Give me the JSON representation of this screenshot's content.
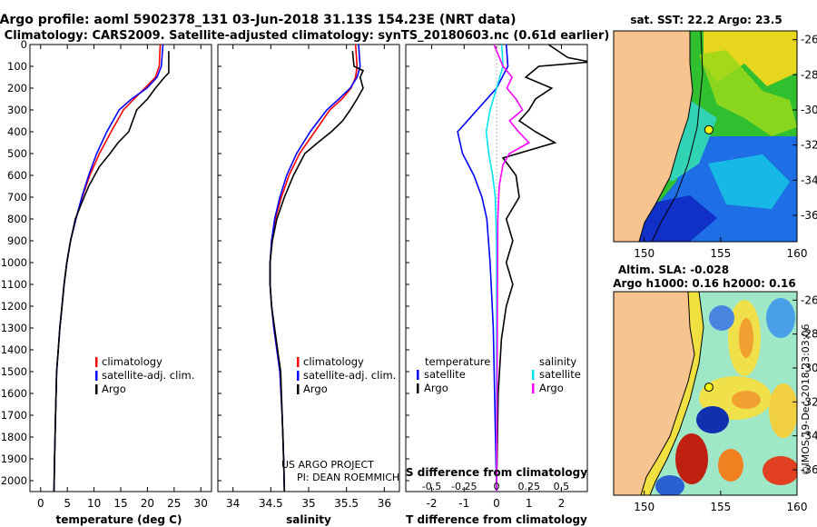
{
  "title_line1": "Argo profile: aoml 5902378_131 03-Jun-2018 31.13S 154.23E (NRT data)",
  "title_line2": "Climatology: CARS2009. Satellite-adjusted climatology: synTS_20180603.nc (0.61d earlier)",
  "credit_line1": "US ARGO PROJECT",
  "credit_line2": "PI: DEAN ROEMMICH",
  "stamp": "©IMOS 19-Dec-2018 23:03:06",
  "colors": {
    "climatology": "#ff0000",
    "satellite": "#0000ff",
    "argo": "#000000",
    "sat_s_diff": "#00e5ee",
    "argo_s_diff": "#ff00ff",
    "land": "#f7c38f"
  },
  "chart_data": [
    {
      "type": "line",
      "id": "temperature",
      "xlabel": "temperature (deg C)",
      "ylabel": "",
      "xlim": [
        -2,
        32
      ],
      "ylim": [
        2050,
        0
      ],
      "xticks": [
        "0",
        "5",
        "10",
        "15",
        "20",
        "25",
        "30"
      ],
      "xtick_values": [
        0,
        5,
        10,
        15,
        20,
        25,
        30
      ],
      "yticks": [
        "0",
        "100",
        "200",
        "300",
        "400",
        "500",
        "600",
        "700",
        "800",
        "900",
        "1000",
        "1100",
        "1200",
        "1300",
        "1400",
        "1500",
        "1600",
        "1700",
        "1800",
        "1900",
        "2000"
      ],
      "ytick_values": [
        0,
        100,
        200,
        300,
        400,
        500,
        600,
        700,
        800,
        900,
        1000,
        1100,
        1200,
        1300,
        1400,
        1500,
        1600,
        1700,
        1800,
        1900,
        2000
      ],
      "legend": [
        "climatology",
        "satellite-adj. clim.",
        "Argo"
      ],
      "series": [
        {
          "name": "climatology",
          "color": "#ff0000",
          "x": [
            22.4,
            22.2,
            21.5,
            19.5,
            17.5,
            15.5,
            13.2,
            11.0,
            9.2,
            7.8,
            6.6,
            5.6,
            4.9,
            4.4,
            4.0,
            3.6,
            3.3,
            3.0,
            2.8,
            2.6,
            2.5
          ],
          "y": [
            0,
            100,
            150,
            200,
            250,
            300,
            400,
            500,
            600,
            700,
            800,
            900,
            1000,
            1100,
            1200,
            1300,
            1400,
            1500,
            1700,
            1900,
            2050
          ]
        },
        {
          "name": "satellite-adj. clim.",
          "color": "#0000ff",
          "x": [
            22.9,
            22.6,
            21.8,
            19.9,
            17.0,
            14.7,
            12.4,
            10.5,
            9.0,
            7.7,
            6.6,
            5.6,
            4.9,
            4.4,
            4.0,
            3.6,
            3.3,
            3.0,
            2.8,
            2.6,
            2.5
          ],
          "y": [
            0,
            100,
            150,
            200,
            250,
            300,
            400,
            500,
            600,
            700,
            800,
            900,
            1000,
            1100,
            1200,
            1300,
            1400,
            1500,
            1700,
            1900,
            2050
          ]
        },
        {
          "name": "Argo",
          "color": "#000000",
          "x": [
            24.0,
            24.0,
            23.2,
            21.5,
            20.0,
            18.0,
            16.5,
            14.5,
            13.0,
            11.0,
            9.0,
            7.8,
            6.5,
            5.6,
            4.9,
            4.4,
            4.0,
            3.6,
            3.3,
            3.0,
            2.8,
            2.6,
            2.5
          ],
          "y": [
            30,
            130,
            150,
            200,
            250,
            300,
            400,
            450,
            500,
            560,
            650,
            720,
            800,
            900,
            1000,
            1100,
            1200,
            1300,
            1400,
            1500,
            1700,
            1900,
            2050
          ]
        }
      ]
    },
    {
      "type": "line",
      "id": "salinity",
      "xlabel": "salinity",
      "xlim": [
        33.8,
        36.2
      ],
      "ylim": [
        2050,
        0
      ],
      "xticks": [
        "34",
        "34.5",
        "35",
        "35.5",
        "36"
      ],
      "xtick_values": [
        34,
        34.5,
        35,
        35.5,
        36
      ],
      "legend": [
        "climatology",
        "satellite-adj. clim.",
        "Argo"
      ],
      "series": [
        {
          "name": "climatology",
          "color": "#ff0000",
          "x": [
            35.62,
            35.64,
            35.62,
            35.56,
            35.44,
            35.28,
            35.08,
            34.88,
            34.74,
            34.64,
            34.56,
            34.51,
            34.49,
            34.49,
            34.51,
            34.54,
            34.58,
            34.62,
            34.65,
            34.67,
            34.68
          ],
          "y": [
            0,
            100,
            150,
            200,
            250,
            300,
            400,
            500,
            600,
            700,
            800,
            900,
            1000,
            1100,
            1200,
            1300,
            1400,
            1500,
            1700,
            1900,
            2050
          ]
        },
        {
          "name": "satellite-adj. clim.",
          "color": "#0000ff",
          "x": [
            35.66,
            35.68,
            35.64,
            35.55,
            35.4,
            35.24,
            35.02,
            34.84,
            34.71,
            34.62,
            34.55,
            34.51,
            34.49,
            34.49,
            34.51,
            34.54,
            34.58,
            34.62,
            34.65,
            34.67,
            34.68
          ],
          "y": [
            0,
            100,
            150,
            200,
            250,
            300,
            400,
            500,
            600,
            700,
            800,
            900,
            1000,
            1100,
            1200,
            1300,
            1400,
            1500,
            1700,
            1900,
            2050
          ]
        },
        {
          "name": "Argo",
          "color": "#000000",
          "x": [
            35.58,
            35.6,
            35.72,
            35.68,
            35.72,
            35.64,
            35.55,
            35.45,
            35.3,
            35.12,
            34.95,
            34.8,
            34.68,
            34.58,
            34.52,
            34.49,
            34.49,
            34.51,
            34.55,
            34.59,
            34.63,
            34.66,
            34.68
          ],
          "y": [
            30,
            100,
            120,
            150,
            200,
            250,
            300,
            350,
            400,
            450,
            500,
            600,
            700,
            800,
            900,
            1000,
            1100,
            1200,
            1300,
            1400,
            1500,
            1800,
            2050
          ]
        }
      ]
    },
    {
      "type": "line",
      "id": "differences",
      "xlabel": "T difference from climatology",
      "xlim": [
        -2.8,
        2.8
      ],
      "ylim": [
        2050,
        0
      ],
      "xticks": [
        "-2",
        "-1",
        "0",
        "1",
        "2"
      ],
      "xtick_values": [
        -2,
        -1,
        0,
        1,
        2
      ],
      "s_caption": "S difference from climatology",
      "s_ticks": [
        "-0.5",
        "-0.25",
        "0",
        "0.25",
        "0.5"
      ],
      "s_tick_values": [
        -0.5,
        -0.25,
        0,
        0.25,
        0.5
      ],
      "s_xlim": [
        -0.7,
        0.7
      ],
      "legend_temperature_title": "temperature",
      "legend_salinity_title": "salinity",
      "legend_temperature": [
        "satellite",
        "Argo"
      ],
      "legend_salinity": [
        "satellite",
        "Argo"
      ],
      "series": [
        {
          "name": "temperature satellite",
          "color": "#0000ff",
          "axis": "T",
          "x": [
            0.3,
            0.35,
            0.0,
            -0.6,
            -1.2,
            -1.05,
            -0.7,
            -0.45,
            -0.3,
            -0.2,
            -0.1,
            0.0
          ],
          "y": [
            0,
            100,
            200,
            300,
            400,
            500,
            600,
            700,
            800,
            1000,
            1300,
            2050
          ]
        },
        {
          "name": "temperature Argo",
          "color": "#000000",
          "axis": "T",
          "x": [
            1.6,
            2.2,
            2.9,
            1.3,
            0.9,
            1.7,
            1.2,
            1.0,
            0.7,
            1.2,
            1.8,
            0.2,
            0.6,
            0.7,
            0.3,
            0.5,
            0.3,
            0.5,
            0.3,
            0.15,
            0.05,
            0.0
          ],
          "y": [
            0,
            60,
            80,
            100,
            150,
            200,
            250,
            300,
            350,
            400,
            450,
            520,
            600,
            700,
            800,
            900,
            1000,
            1100,
            1200,
            1350,
            1600,
            2050
          ]
        },
        {
          "name": "salinity satellite",
          "color": "#00e5ee",
          "axis": "S",
          "x": [
            0.04,
            0.05,
            0.0,
            -0.05,
            -0.08,
            -0.06,
            -0.03,
            -0.01,
            0.0,
            0.0
          ],
          "y": [
            0,
            100,
            200,
            300,
            400,
            500,
            600,
            700,
            900,
            2050
          ]
        },
        {
          "name": "salinity Argo",
          "color": "#ff00ff",
          "axis": "S",
          "x": [
            -0.02,
            0.05,
            0.12,
            0.08,
            0.15,
            0.2,
            0.1,
            0.17,
            0.25,
            0.1,
            0.05,
            0.02,
            0.01,
            0.0
          ],
          "y": [
            0,
            100,
            150,
            200,
            250,
            300,
            350,
            400,
            450,
            500,
            550,
            650,
            800,
            2050
          ]
        }
      ]
    },
    {
      "type": "heatmap",
      "id": "sst_map",
      "title": "sat. SST: 22.2 Argo: 23.5",
      "xlim": [
        148,
        160
      ],
      "ylim": [
        -37.5,
        -25.5
      ],
      "xticks": [
        "150",
        "155",
        "160"
      ],
      "xtick_values": [
        150,
        155,
        160
      ],
      "yticks": [
        "-26",
        "-28",
        "-30",
        "-32",
        "-34",
        "-36"
      ],
      "ytick_values": [
        -26,
        -28,
        -30,
        -32,
        -34,
        -36
      ],
      "marker": {
        "lon": 154.23,
        "lat": -31.13
      }
    },
    {
      "type": "heatmap",
      "id": "sla_map",
      "title_line1": "Altim. SLA: -0.028",
      "title_line2": "Argo h1000: 0.16 h2000: 0.16",
      "xlim": [
        148,
        160
      ],
      "ylim": [
        -37.5,
        -25.5
      ],
      "xticks": [
        "150",
        "155",
        "160"
      ],
      "xtick_values": [
        150,
        155,
        160
      ],
      "yticks": [
        "-26",
        "-28",
        "-30",
        "-32",
        "-34",
        "-36"
      ],
      "ytick_values": [
        -26,
        -28,
        -30,
        -32,
        -34,
        -36
      ],
      "marker": {
        "lon": 154.23,
        "lat": -31.13
      }
    }
  ]
}
